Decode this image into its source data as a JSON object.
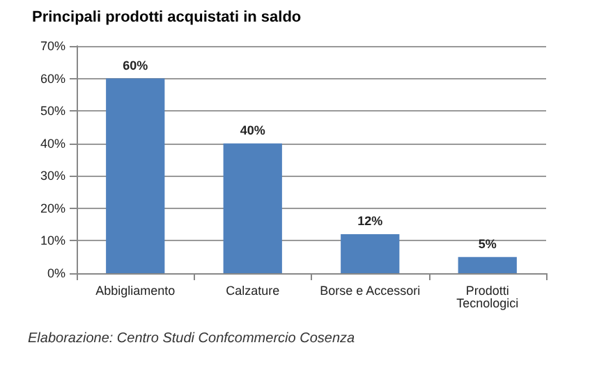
{
  "chart_data": {
    "type": "bar",
    "title": "Principali prodotti acquistati in saldo",
    "categories": [
      "Abbigliamento",
      "Calzature",
      "Borse e Accessori",
      "Prodotti\nTecnologici"
    ],
    "values": [
      60,
      40,
      12,
      5
    ],
    "color": "#4f81bd",
    "value_labels": [
      "60%",
      "40%",
      "12%",
      "5%"
    ],
    "ylim": [
      0,
      70
    ],
    "yticks": [
      {
        "value": 0,
        "label": "0%"
      },
      {
        "value": 10,
        "label": "10%"
      },
      {
        "value": 20,
        "label": "20%"
      },
      {
        "value": 30,
        "label": "30%"
      },
      {
        "value": 40,
        "label": "40%"
      },
      {
        "value": 50,
        "label": "50%"
      },
      {
        "value": 60,
        "label": "60%"
      },
      {
        "value": 70,
        "label": "70%"
      }
    ],
    "grid": "y",
    "annotations": [
      "Elaborazione: Centro Studi Confcommercio Cosenza"
    ]
  }
}
